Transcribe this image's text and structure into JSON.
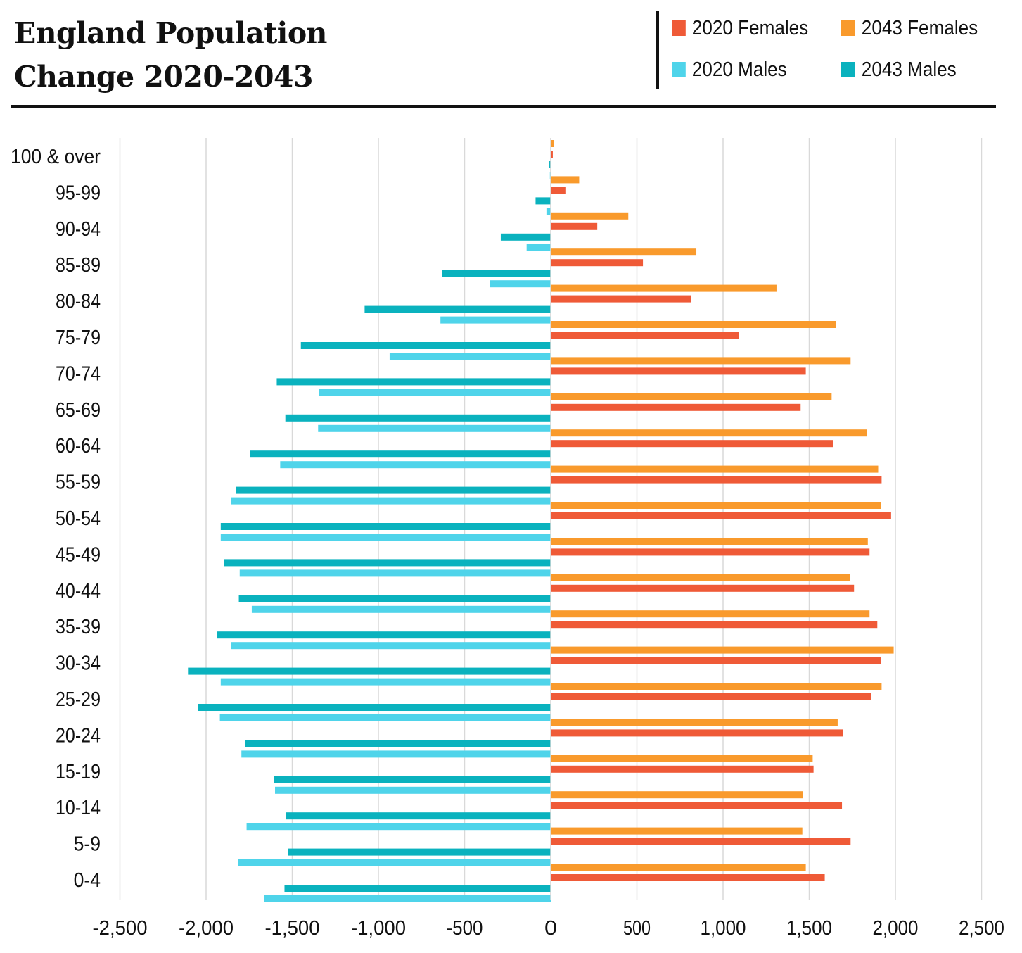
{
  "chart_data": {
    "type": "bar",
    "orientation": "horizontal",
    "title": "England Population Change 2020-2043",
    "title_lines": [
      "England Population",
      "Change 2020-2043"
    ],
    "categories": [
      "0-4",
      "5-9",
      "10-14",
      "15-19",
      "20-24",
      "25-29",
      "30-34",
      "35-39",
      "40-44",
      "45-49",
      "50-54",
      "55-59",
      "60-64",
      "65-69",
      "70-74",
      "75-79",
      "80-84",
      "85-89",
      "90-94",
      "95-99",
      "100 & over"
    ],
    "series": [
      {
        "name": "2043 Females",
        "color": "#F99A2C",
        "values": [
          1480,
          1460,
          1465,
          1520,
          1665,
          1920,
          1990,
          1850,
          1735,
          1840,
          1915,
          1900,
          1835,
          1630,
          1740,
          1655,
          1310,
          845,
          450,
          165,
          20
        ]
      },
      {
        "name": "2020 Females",
        "color": "#EF5A37",
        "values": [
          1590,
          1740,
          1690,
          1525,
          1695,
          1860,
          1915,
          1895,
          1760,
          1850,
          1975,
          1920,
          1640,
          1450,
          1480,
          1090,
          815,
          535,
          270,
          85,
          12
        ]
      },
      {
        "name": "2043 Males",
        "color": "#0AB2BE",
        "values": [
          -1545,
          -1525,
          -1535,
          -1605,
          -1775,
          -2045,
          -2105,
          -1935,
          -1810,
          -1895,
          -1915,
          -1825,
          -1745,
          -1540,
          -1590,
          -1450,
          -1080,
          -630,
          -290,
          -88,
          -8
        ]
      },
      {
        "name": "2020 Males",
        "color": "#4FD4EA",
        "values": [
          -1665,
          -1815,
          -1765,
          -1600,
          -1795,
          -1920,
          -1915,
          -1855,
          -1735,
          -1805,
          -1915,
          -1855,
          -1570,
          -1350,
          -1345,
          -935,
          -640,
          -355,
          -140,
          -25,
          -5
        ]
      }
    ],
    "legend": {
      "placement": "top-right",
      "rows": [
        [
          "2020 Females",
          "2043 Females"
        ],
        [
          "2020 Males",
          "2043 Males"
        ]
      ]
    },
    "xlim": [
      -2500,
      2500
    ],
    "xticks": [
      -2500,
      -2000,
      -1500,
      -1000,
      -500,
      0,
      500,
      1000,
      1500,
      2000,
      2500
    ],
    "xtick_labels": [
      "-2,500",
      "-2,000",
      "-1,500",
      "-1,000",
      "-500",
      "0",
      "500",
      "1,000",
      "1,500",
      "2,000",
      "2,500"
    ],
    "grid": "vertical",
    "xlabel": "",
    "ylabel": ""
  }
}
